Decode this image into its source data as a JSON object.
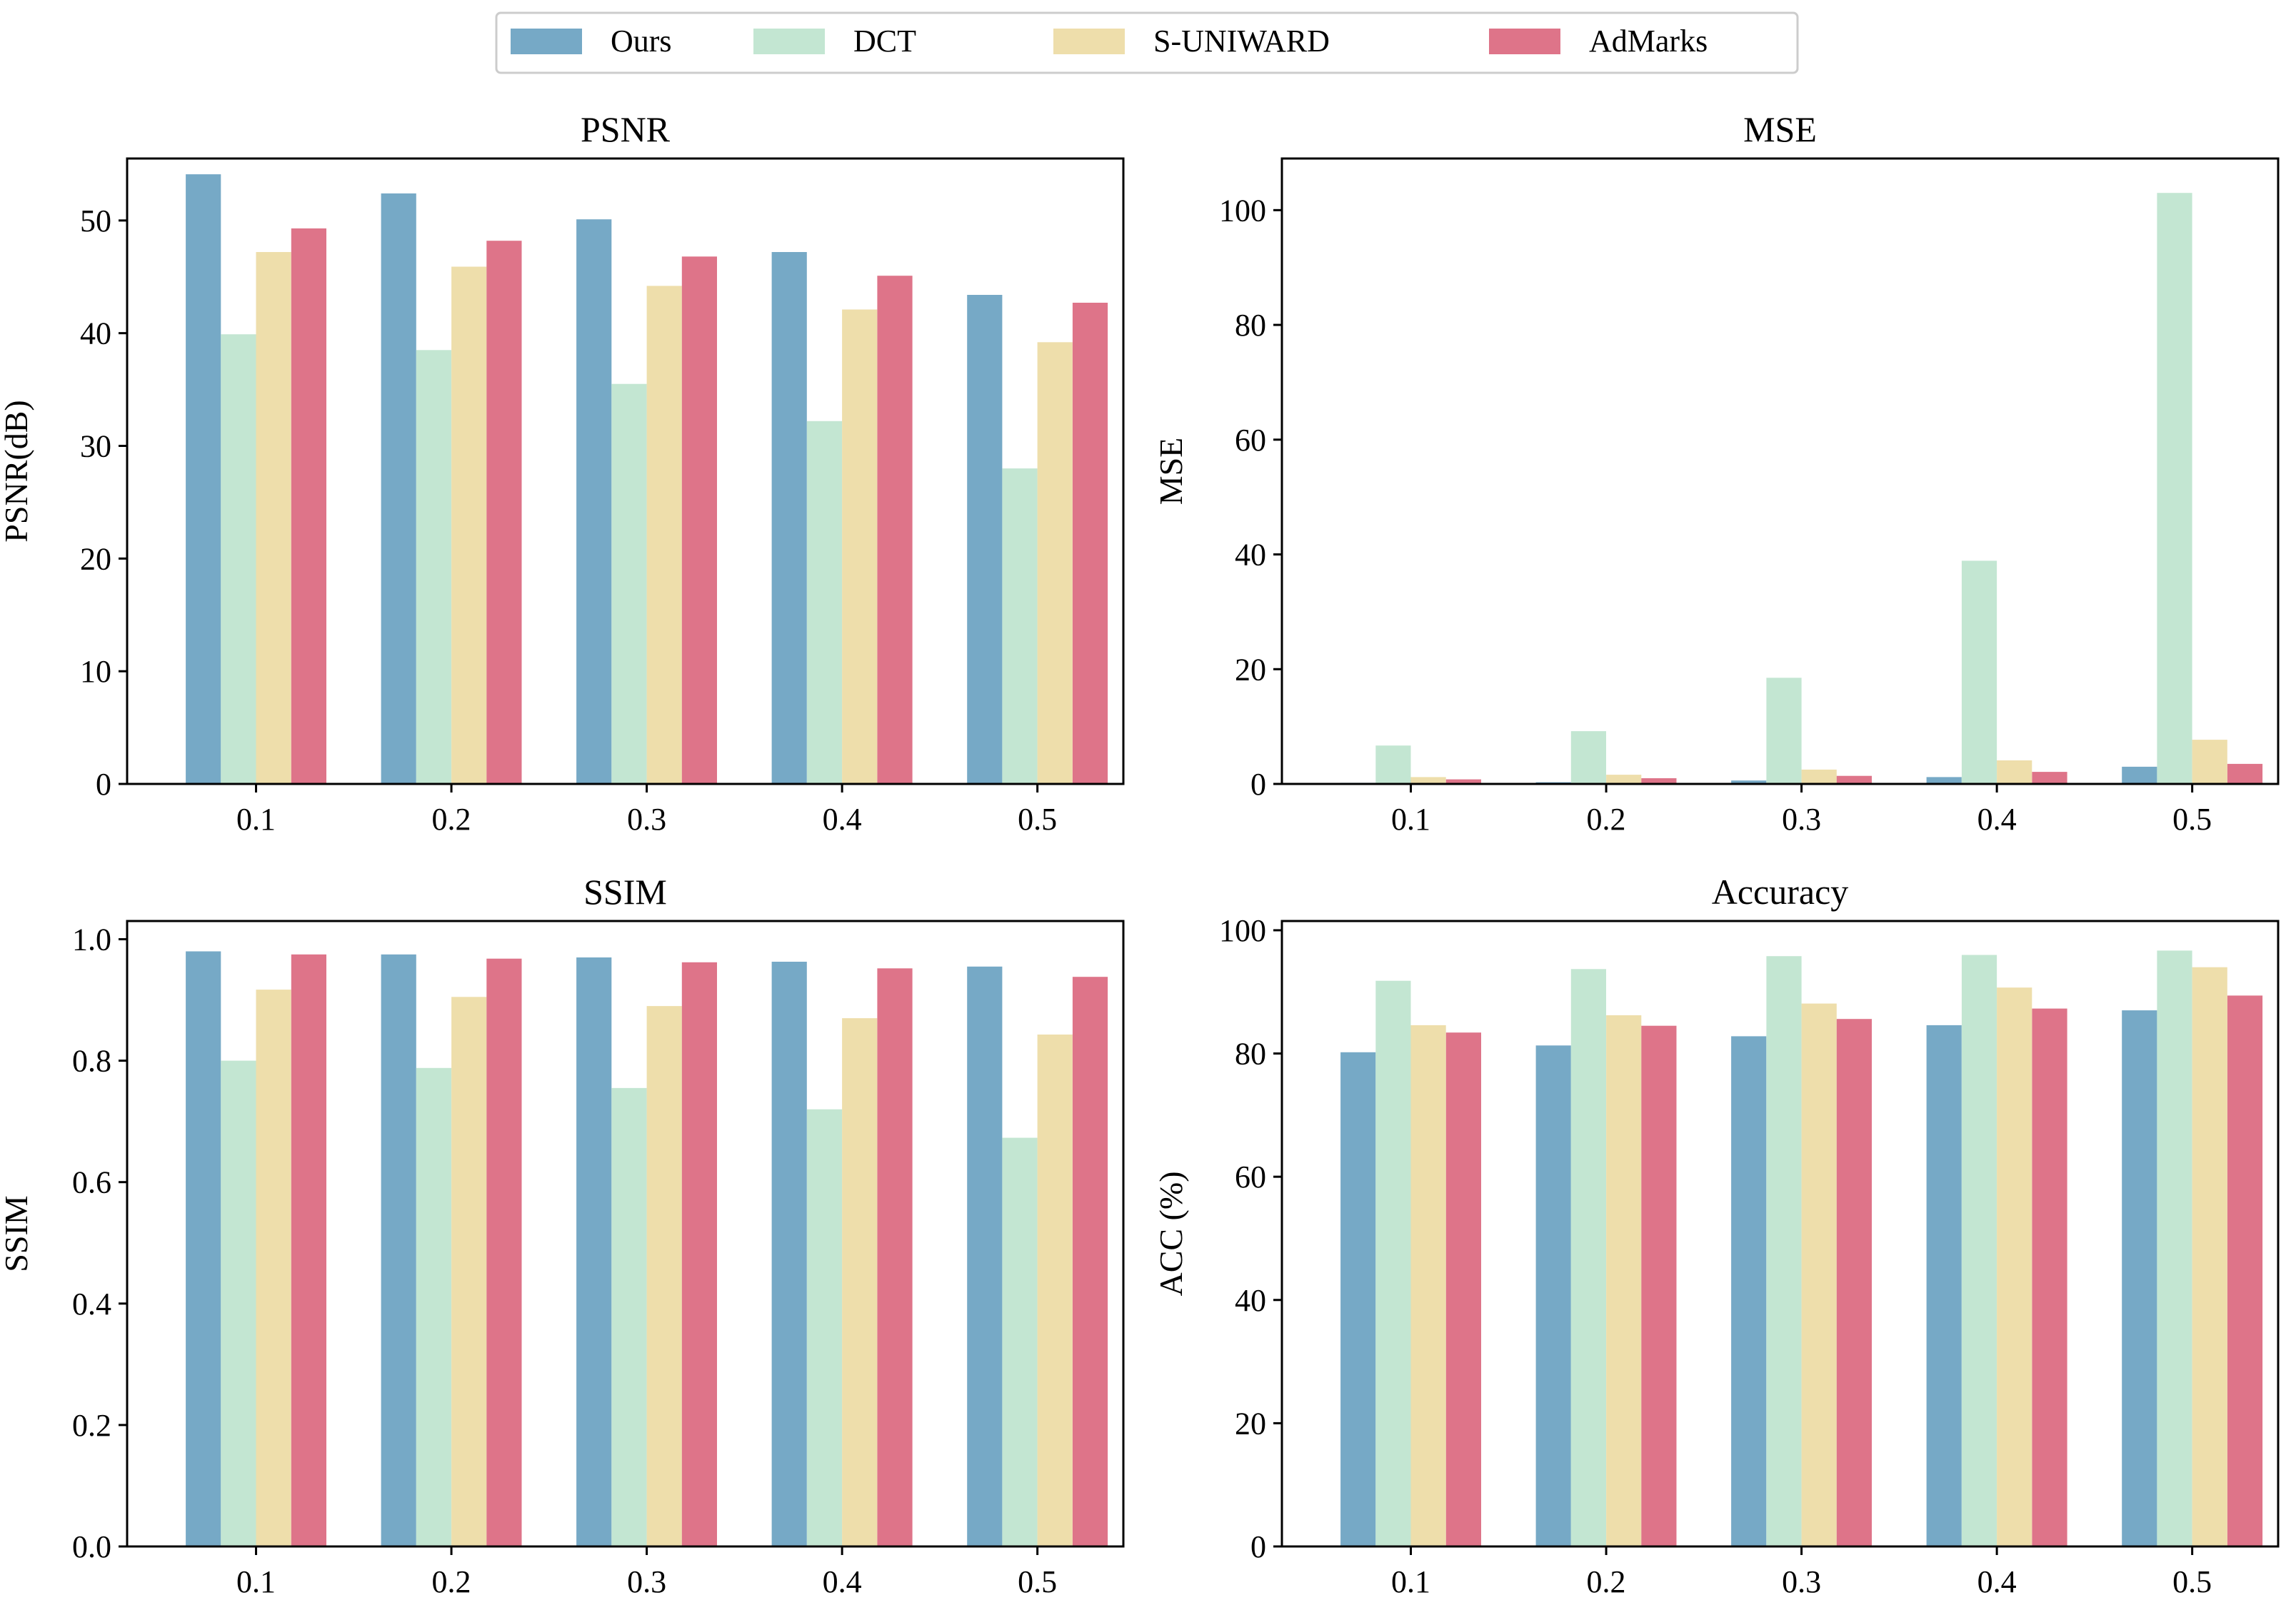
{
  "legend": {
    "position": "top-center",
    "entries": [
      {
        "label": "Ours",
        "color": "#76a9c6"
      },
      {
        "label": "DCT",
        "color": "#c3e6d2"
      },
      {
        "label": "S-UNIWARD",
        "color": "#eedeab"
      },
      {
        "label": "AdMarks",
        "color": "#de7489"
      }
    ]
  },
  "chart_data": [
    {
      "type": "bar",
      "title": "PSNR",
      "xlabel": "",
      "ylabel": "PSNR(dB)",
      "categories": [
        "0.1",
        "0.2",
        "0.3",
        "0.4",
        "0.5"
      ],
      "ylim": [
        0,
        55.5
      ],
      "yticks": [
        0,
        10,
        20,
        30,
        40,
        50
      ],
      "series": [
        {
          "name": "Ours",
          "values": [
            54.1,
            52.4,
            50.1,
            47.2,
            43.4
          ]
        },
        {
          "name": "DCT",
          "values": [
            39.9,
            38.5,
            35.5,
            32.2,
            28.0
          ]
        },
        {
          "name": "S-UNIWARD",
          "values": [
            47.2,
            45.9,
            44.2,
            42.1,
            39.2
          ]
        },
        {
          "name": "AdMarks",
          "values": [
            49.3,
            48.2,
            46.8,
            45.1,
            42.7
          ]
        }
      ]
    },
    {
      "type": "bar",
      "title": "MSE",
      "xlabel": "",
      "ylabel": "MSE",
      "categories": [
        "0.1",
        "0.2",
        "0.3",
        "0.4",
        "0.5"
      ],
      "ylim": [
        0,
        109
      ],
      "yticks": [
        0,
        20,
        40,
        60,
        80,
        100
      ],
      "series": [
        {
          "name": "Ours",
          "values": [
            0.2,
            0.3,
            0.6,
            1.2,
            3.0
          ]
        },
        {
          "name": "DCT",
          "values": [
            6.7,
            9.2,
            18.5,
            38.9,
            103.0
          ]
        },
        {
          "name": "S-UNIWARD",
          "values": [
            1.2,
            1.6,
            2.5,
            4.1,
            7.7
          ]
        },
        {
          "name": "AdMarks",
          "values": [
            0.8,
            1.0,
            1.4,
            2.1,
            3.5
          ]
        }
      ]
    },
    {
      "type": "bar",
      "title": "SSIM",
      "xlabel": "",
      "ylabel": "SSIM",
      "categories": [
        "0.1",
        "0.2",
        "0.3",
        "0.4",
        "0.5"
      ],
      "ylim": [
        0,
        1.03
      ],
      "yticks": [
        "0.0",
        "0.2",
        "0.4",
        "0.6",
        "0.8",
        "1.0"
      ],
      "series": [
        {
          "name": "Ours",
          "values": [
            0.98,
            0.975,
            0.97,
            0.963,
            0.955
          ]
        },
        {
          "name": "DCT",
          "values": [
            0.8,
            0.788,
            0.755,
            0.72,
            0.673
          ]
        },
        {
          "name": "S-UNIWARD",
          "values": [
            0.917,
            0.905,
            0.89,
            0.87,
            0.843
          ]
        },
        {
          "name": "AdMarks",
          "values": [
            0.975,
            0.968,
            0.962,
            0.952,
            0.938
          ]
        }
      ]
    },
    {
      "type": "bar",
      "title": "Accuracy",
      "xlabel": "",
      "ylabel": "ACC (%)",
      "categories": [
        "0.1",
        "0.2",
        "0.3",
        "0.4",
        "0.5"
      ],
      "ylim": [
        0,
        101.5
      ],
      "yticks": [
        0,
        20,
        40,
        60,
        80,
        100
      ],
      "series": [
        {
          "name": "Ours",
          "values": [
            80.2,
            81.3,
            82.8,
            84.6,
            87.0
          ]
        },
        {
          "name": "DCT",
          "values": [
            91.8,
            93.7,
            95.8,
            96.0,
            96.7
          ]
        },
        {
          "name": "S-UNIWARD",
          "values": [
            84.6,
            86.2,
            88.1,
            90.7,
            94.0
          ]
        },
        {
          "name": "AdMarks",
          "values": [
            83.4,
            84.5,
            85.6,
            87.3,
            89.4
          ]
        }
      ]
    }
  ]
}
